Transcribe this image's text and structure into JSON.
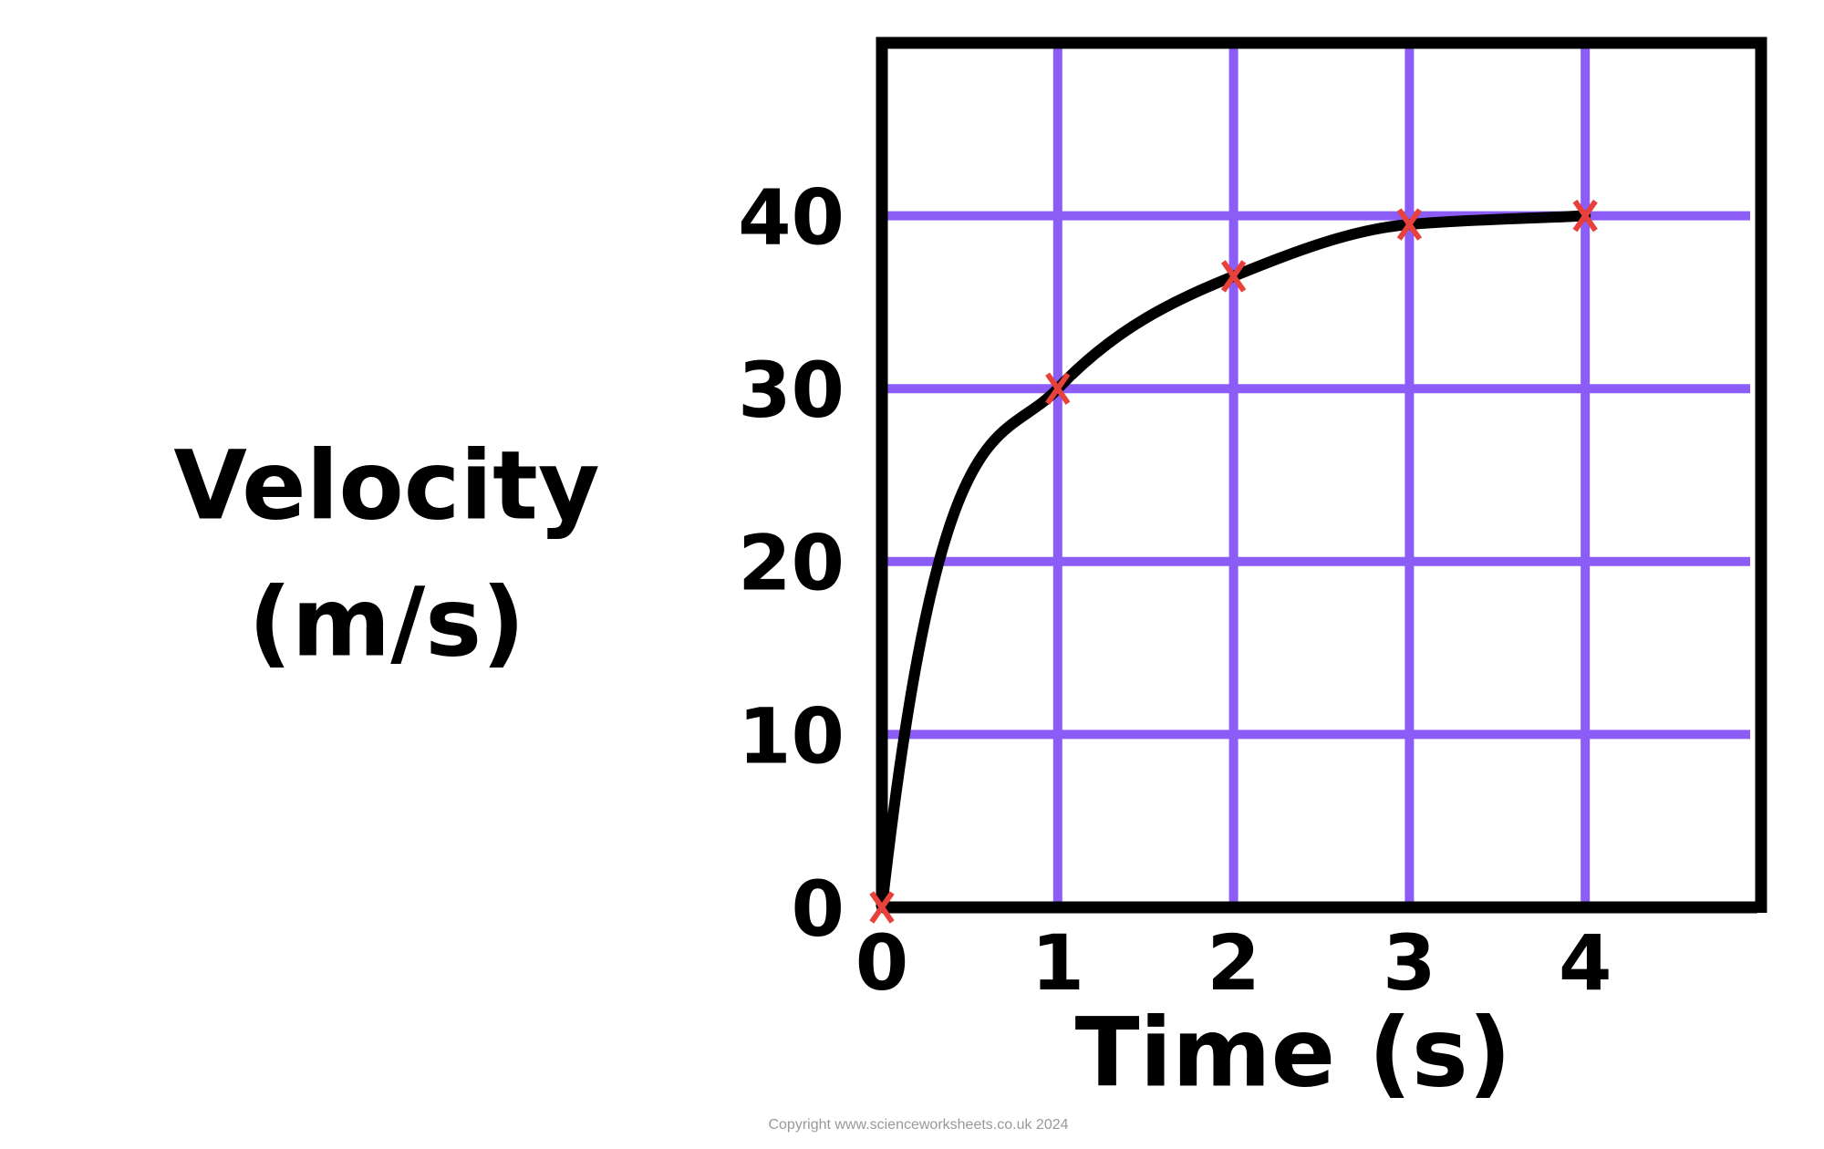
{
  "chart_data": {
    "type": "scatter",
    "x_label": "Time (s)",
    "y_label": [
      "Velocity",
      "(m/s)"
    ],
    "x": [
      0,
      1,
      2,
      3,
      4
    ],
    "series": [
      {
        "values": [
          0,
          30,
          36.5,
          39.5,
          40
        ],
        "color": "#e8413c",
        "line_color": "#000000"
      }
    ],
    "smooth_line": true,
    "xlim": [
      0,
      5
    ],
    "ylim": [
      0,
      50
    ],
    "xticks": [
      0,
      1,
      2,
      3,
      4
    ],
    "yticks": [
      0,
      10,
      20,
      30,
      40
    ],
    "grid": true,
    "grid_color": "#8b5cf6",
    "footer": "Copyright www.scienceworksheets.co.uk 2024"
  }
}
